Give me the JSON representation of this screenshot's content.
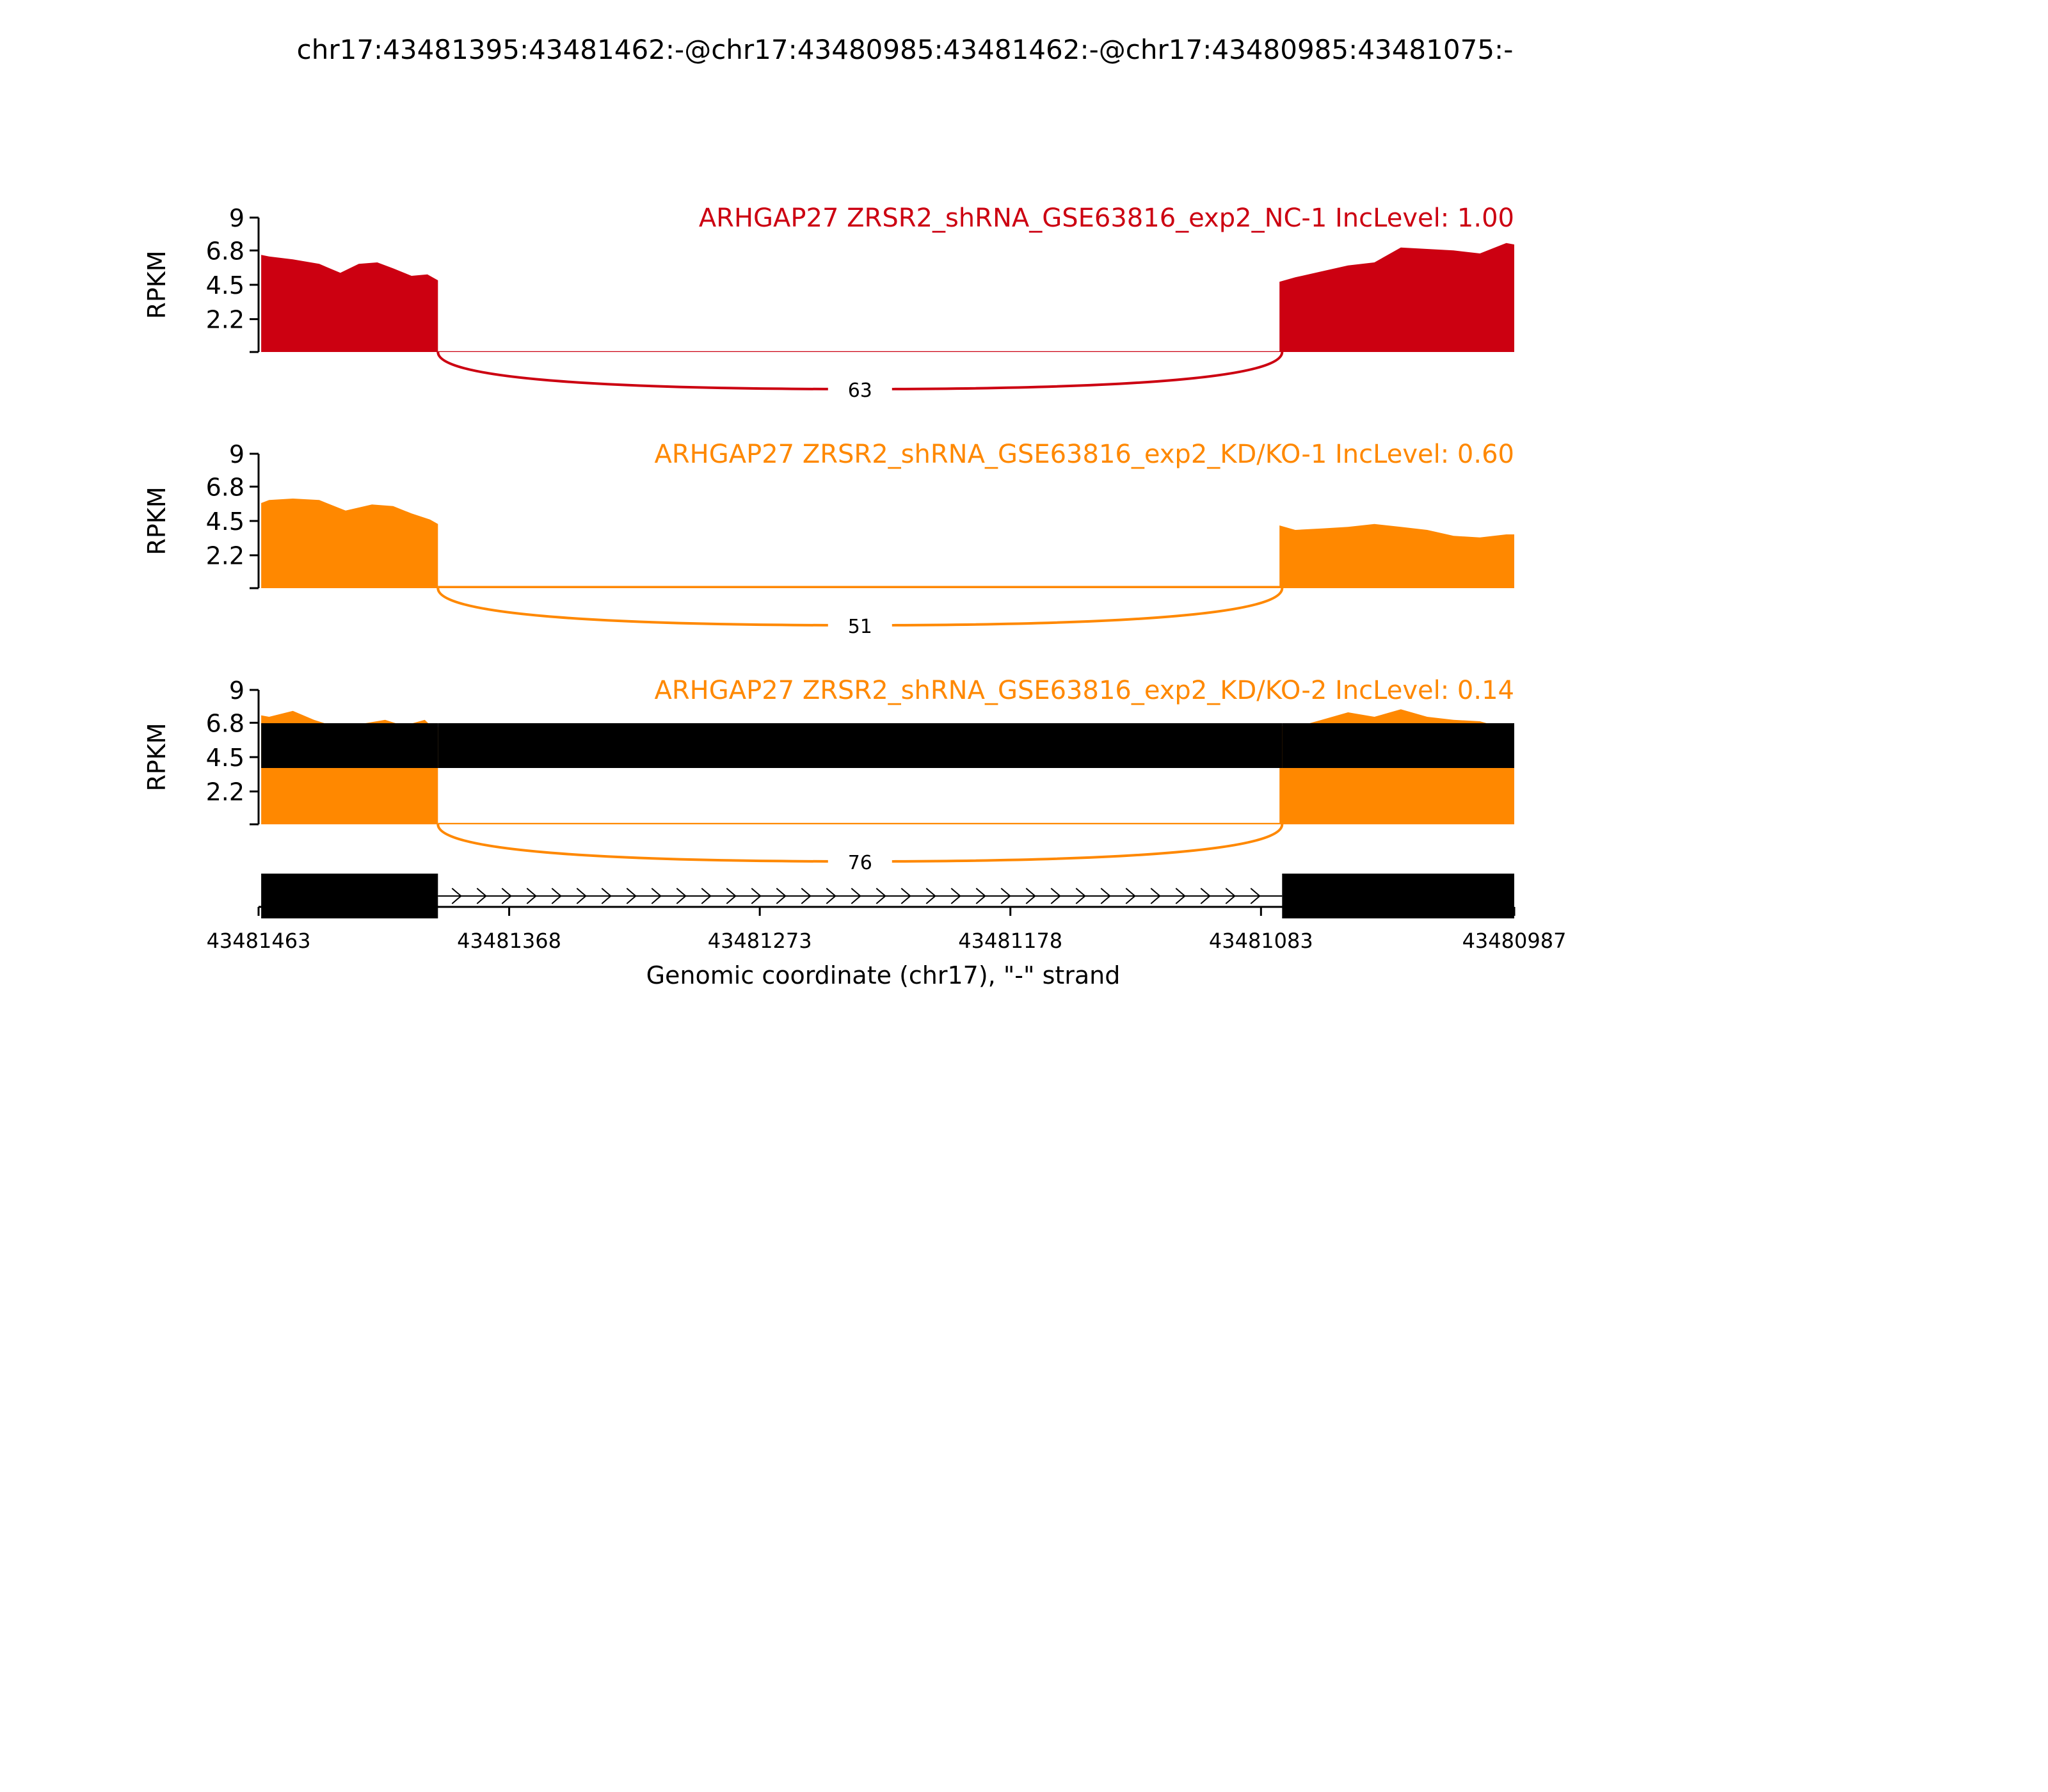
{
  "figure": {
    "title": "chr17:43481395:43481462:-@chr17:43480985:43481462:-@chr17:43480985:43481075:-"
  },
  "chart_data": {
    "type": "area",
    "subtype": "sashimi",
    "title": "chr17:43481395:43481462:-@chr17:43480985:43481462:-@chr17:43480985:43481075:-",
    "xlabel": "Genomic coordinate (chr17), \"-\" strand",
    "ylabel": "RPKM",
    "x_reversed": true,
    "xlim": [
      43481463,
      43480987
    ],
    "x_ticks": [
      43481463,
      43481368,
      43481273,
      43481178,
      43481083,
      43480987
    ],
    "x_tick_labels": [
      "43481463",
      "43481368",
      "43481273",
      "43481178",
      "43481083",
      "43480987"
    ],
    "ylim": [
      0,
      9
    ],
    "y_ticks": [
      2.2,
      4.5,
      6.8,
      9
    ],
    "y_tick_labels": [
      "2.2",
      "4.5",
      "6.8",
      "9"
    ],
    "grid": false,
    "panels": [
      {
        "label": "ARHGAP27 ZRSR2_shRNA_GSE63816_exp2_NC-1 IncLevel: 1.00",
        "color": "#cc0011",
        "junction": {
          "start": 43481395,
          "end": 43481075,
          "count": "63"
        },
        "coverage": [
          {
            "x": [
              43481462,
              43481459,
              43481450,
              43481440,
              43481432,
              43481425,
              43481418,
              43481412,
              43481405,
              43481399,
              43481395
            ],
            "y": [
              6.5,
              6.4,
              6.2,
              5.9,
              5.3,
              5.9,
              6.0,
              5.6,
              5.1,
              5.2,
              4.8
            ]
          },
          {
            "x": [
              43481076,
              43481070,
              43481060,
              43481050,
              43481040,
              43481030,
              43481020,
              43481010,
              43481000,
              43480990,
              43480987
            ],
            "y": [
              4.7,
              5.0,
              5.4,
              5.8,
              6.0,
              7.0,
              6.9,
              6.8,
              6.6,
              7.3,
              7.2
            ]
          },
          {
            "x": [
              43481395,
              43481075
            ],
            "y": [
              0.05,
              0.05
            ]
          }
        ]
      },
      {
        "label": "ARHGAP27 ZRSR2_shRNA_GSE63816_exp2_KD/KO-1 IncLevel: 0.60",
        "color": "#ff8800",
        "junction": {
          "start": 43481395,
          "end": 43481075,
          "count": "51"
        },
        "coverage": [
          {
            "x": [
              43481462,
              43481459,
              43481450,
              43481440,
              43481430,
              43481420,
              43481412,
              43481405,
              43481398,
              43481395
            ],
            "y": [
              5.7,
              5.9,
              6.0,
              5.9,
              5.2,
              5.6,
              5.5,
              5.0,
              4.6,
              4.3
            ]
          },
          {
            "x": [
              43481076,
              43481070,
              43481060,
              43481050,
              43481040,
              43481030,
              43481020,
              43481010,
              43481000,
              43480990,
              43480987
            ],
            "y": [
              4.2,
              3.9,
              4.0,
              4.1,
              4.3,
              4.1,
              3.9,
              3.5,
              3.4,
              3.6,
              3.6
            ]
          },
          {
            "x": [
              43481395,
              43481075
            ],
            "y": [
              0.15,
              0.15
            ]
          }
        ]
      },
      {
        "label": "ARHGAP27 ZRSR2_shRNA_GSE63816_exp2_KD/KO-2 IncLevel: 0.14",
        "color": "#ff8800",
        "junction": {
          "start": 43481395,
          "end": 43481075,
          "count": "76"
        },
        "coverage": [
          {
            "x": [
              43481462,
              43481459,
              43481450,
              43481442,
              43481435,
              43481425,
              43481415,
              43481408,
              43481400,
              43481396,
              43481395
            ],
            "y": [
              7.3,
              7.2,
              7.6,
              7.0,
              6.6,
              6.7,
              7.0,
              6.6,
              7.0,
              6.3,
              6.5
            ]
          },
          {
            "x": [
              43481076,
              43481070,
              43481060,
              43481050,
              43481040,
              43481030,
              43481020,
              43481010,
              43481000,
              43480990,
              43480987
            ],
            "y": [
              6.6,
              6.5,
              7.0,
              7.5,
              7.2,
              7.7,
              7.2,
              7.0,
              6.9,
              6.4,
              6.5
            ]
          },
          {
            "x": [
              43481395,
              43481075
            ],
            "y": [
              0.1,
              0.1
            ]
          }
        ]
      }
    ],
    "transcripts": [
      {
        "exons": [
          [
            43481462,
            43481395
          ],
          [
            43481395,
            43481075
          ],
          [
            43481075,
            43480987
          ]
        ]
      },
      {
        "exons": [
          [
            43481462,
            43481395
          ],
          [
            43481075,
            43480987
          ]
        ],
        "intron": [
          43481395,
          43481075
        ]
      }
    ]
  }
}
